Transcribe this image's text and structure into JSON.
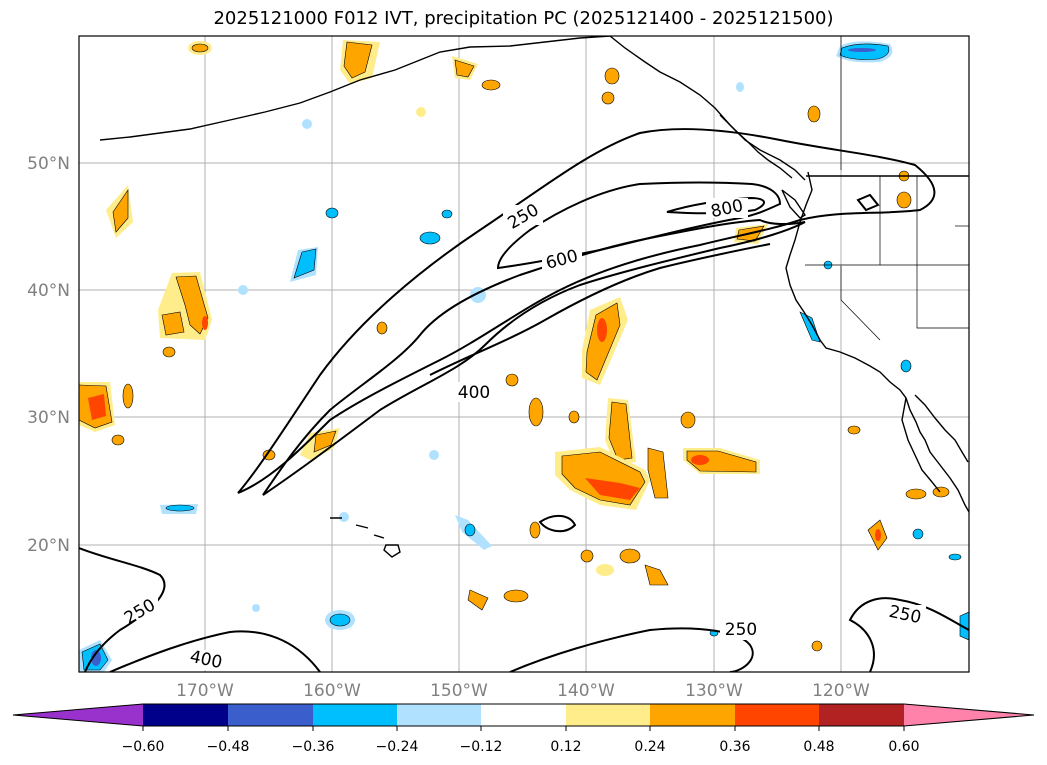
{
  "title": "2025121000 F012 IVT, precipitation PC (2025121400 - 2025121500)",
  "lat_labels": [
    "50°N",
    "40°N",
    "30°N",
    "20°N"
  ],
  "lon_labels": [
    "170°W",
    "160°W",
    "150°W",
    "140°W",
    "130°W",
    "120°W"
  ],
  "contour_labels": [
    "250",
    "600",
    "800",
    "400",
    "250",
    "400",
    "250",
    "250"
  ],
  "colorbar": {
    "ticks": [
      "−0.60",
      "−0.48",
      "−0.36",
      "−0.24",
      "−0.12",
      "0.12",
      "0.24",
      "0.36",
      "0.48",
      "0.60"
    ],
    "colors": [
      "#9932CC",
      "#00008B",
      "#3A5FCD",
      "#00BFFF",
      "#B0E2FF",
      "#FFFFFF",
      "#FFEC8B",
      "#FFA500",
      "#FF4500",
      "#B22222",
      "#FF82AB"
    ]
  }
}
